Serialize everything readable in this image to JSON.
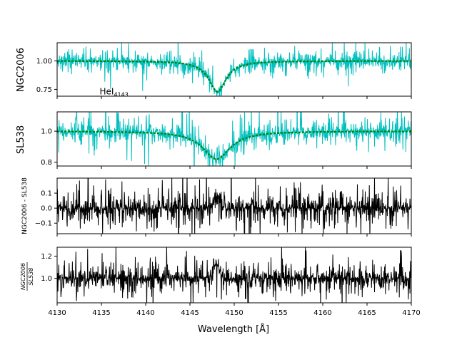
{
  "chart_data": [
    {
      "type": "line",
      "ylabel": "NGC2006",
      "xlim": [
        4130,
        4170
      ],
      "ylim": [
        0.69,
        1.16
      ],
      "yticks": [
        0.75,
        1.0
      ],
      "ytick_labels": [
        "0.75",
        "1.00"
      ],
      "annotation": {
        "base": "HeI",
        "sub": "4143",
        "x": 4134.8,
        "y": 0.705
      },
      "series": [
        {
          "role": "observed",
          "color": "#00bfbf",
          "continuum": 1.0,
          "noise": 0.045,
          "absorption": {
            "center": 4148.1,
            "depth": 0.27,
            "width": 1.2
          }
        },
        {
          "role": "model",
          "color": "#008000",
          "continuum": 1.0,
          "absorption": {
            "center": 4148.1,
            "depth": 0.27,
            "width": 1.2
          }
        }
      ]
    },
    {
      "type": "line",
      "ylabel": "SL538",
      "xlim": [
        4130,
        4170
      ],
      "ylim": [
        0.775,
        1.125
      ],
      "yticks": [
        0.8,
        1.0
      ],
      "ytick_labels": [
        "0.8",
        "1.0"
      ],
      "series": [
        {
          "role": "observed",
          "color": "#00bfbf",
          "continuum": 1.0,
          "noise": 0.045,
          "absorption": {
            "center": 4148.0,
            "depth": 0.18,
            "width": 1.9
          }
        },
        {
          "role": "model",
          "color": "#008000",
          "continuum": 1.0,
          "absorption": {
            "center": 4148.0,
            "depth": 0.18,
            "width": 1.9
          }
        }
      ]
    },
    {
      "type": "line",
      "ylabel": "NGC2006 - SL538",
      "xlim": [
        4130,
        4170
      ],
      "ylim": [
        -0.17,
        0.2
      ],
      "yticks": [
        -0.1,
        0.0,
        0.1
      ],
      "ytick_labels": [
        "−0.1",
        "0.0",
        "0.1"
      ],
      "series": [
        {
          "role": "difference",
          "color": "#000000",
          "baseline": 0.0,
          "noise": 0.06,
          "feature": {
            "center": 4148.0,
            "amp": 0.08,
            "width": 0.5
          }
        }
      ]
    },
    {
      "type": "line",
      "ylabel_num": "NGC2006",
      "ylabel_den": "SL538",
      "xlim": [
        4130,
        4170
      ],
      "ylim": [
        0.78,
        1.28
      ],
      "yticks": [
        1.0,
        1.2
      ],
      "ytick_labels": [
        "1.0",
        "1.2"
      ],
      "xticks": [
        4130,
        4135,
        4140,
        4145,
        4150,
        4155,
        4160,
        4165,
        4170
      ],
      "xtick_labels": [
        "4130",
        "4135",
        "4140",
        "4145",
        "4150",
        "4155",
        "4160",
        "4165",
        "4170"
      ],
      "xlabel": "Wavelength [Å]",
      "series": [
        {
          "role": "ratio",
          "color": "#000000",
          "baseline": 1.0,
          "noise": 0.07,
          "feature": {
            "center": 4148.0,
            "amp": 0.13,
            "width": 0.5
          }
        }
      ]
    }
  ]
}
